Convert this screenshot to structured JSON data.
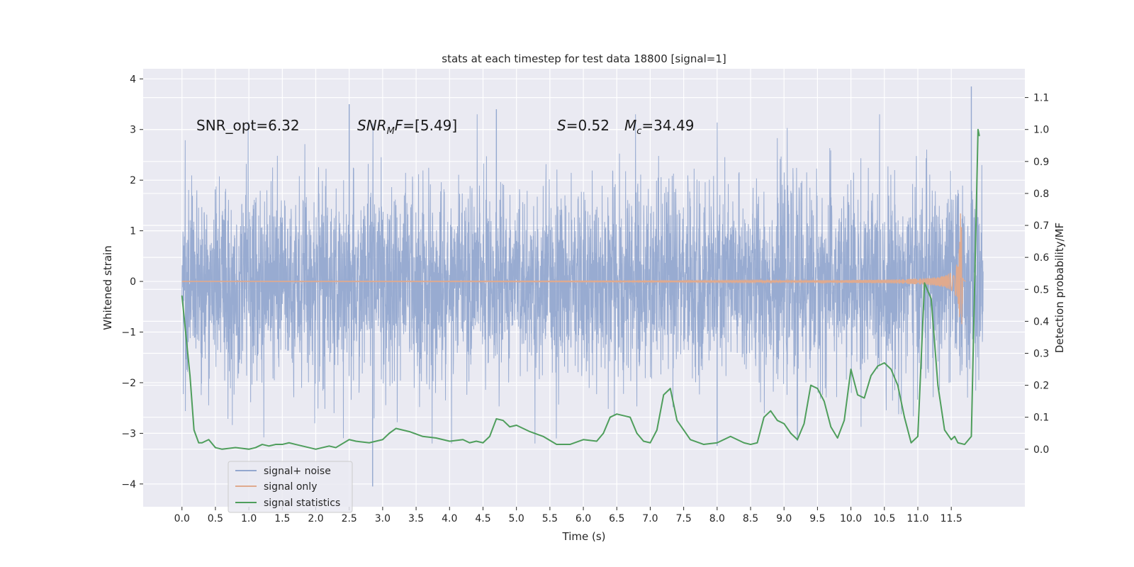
{
  "chart_data": {
    "type": "line",
    "title": "stats at each timestep for test data 18800 [signal=1]",
    "xlabel": "Time (s)",
    "ylabel": "Whitened strain",
    "y2label": "Detection probability/MF",
    "xlim": [
      -0.58,
      12.6
    ],
    "ylim": [
      -4.45,
      4.2
    ],
    "y2lim": [
      -0.18,
      1.19
    ],
    "x_ticks": [
      0.0,
      0.5,
      1.0,
      1.5,
      2.0,
      2.5,
      3.0,
      3.5,
      4.0,
      4.5,
      5.0,
      5.5,
      6.0,
      6.5,
      7.0,
      7.5,
      8.0,
      8.5,
      9.0,
      9.5,
      10.0,
      10.5,
      11.0,
      11.5
    ],
    "x_tick_labels": [
      "0.0",
      "0.5",
      "1.0",
      "1.5",
      "2.0",
      "2.5",
      "3.0",
      "3.5",
      "4.0",
      "4.5",
      "5.0",
      "5.5",
      "6.0",
      "6.5",
      "7.0",
      "7.5",
      "8.0",
      "8.5",
      "9.0",
      "9.5",
      "10.0",
      "10.5",
      "11.0",
      "11.5"
    ],
    "y_ticks": [
      4,
      3,
      2,
      1,
      0,
      -1,
      -2,
      -3,
      -4
    ],
    "y_tick_labels": [
      "4",
      "3",
      "2",
      "1",
      "0",
      "−1",
      "−2",
      "−3",
      "−4"
    ],
    "y2_ticks": [
      1.1,
      1.0,
      0.9,
      0.8,
      0.7,
      0.6,
      0.5,
      0.4,
      0.3,
      0.2,
      0.1,
      0.0
    ],
    "y2_tick_labels": [
      "1.1",
      "1.0",
      "0.9",
      "0.8",
      "0.7",
      "0.6",
      "0.5",
      "0.4",
      "0.3",
      "0.2",
      "0.1",
      "0.0"
    ],
    "grid": true,
    "legend_position": "lower-left",
    "annotations": [
      {
        "text": "SNR_opt=6.32",
        "x": 0.2,
        "y": 3.1
      },
      {
        "text": "SNR",
        "sub": "M",
        "tail": "F=[5.49]",
        "x": 2.6,
        "y": 3.1,
        "italic": true
      },
      {
        "text": "S",
        "tail": "=0.52",
        "x": 5.6,
        "y": 3.1,
        "italic_first": true
      },
      {
        "text": "M",
        "sub": "c",
        "tail": "=34.49",
        "x": 6.6,
        "y": 3.1,
        "italic": true
      }
    ],
    "series": [
      {
        "name": "signal+ noise",
        "color": "#94a8cf",
        "kind": "noise",
        "t_start": 0.0,
        "t_end": 11.98,
        "band_typical": [
          -1.8,
          1.8
        ],
        "notable_peaks": [
          {
            "x": 11.8,
            "y": 3.85
          },
          {
            "x": 2.5,
            "y": 3.5
          },
          {
            "x": 4.7,
            "y": 3.4
          },
          {
            "x": 2.85,
            "y": -4.05
          },
          {
            "x": 8.0,
            "y": -3.25
          },
          {
            "x": 9.2,
            "y": -3.15
          }
        ]
      },
      {
        "name": "signal only",
        "color": "#e0aa8e",
        "kind": "chirp",
        "t_start": 0.0,
        "t_end": 11.72,
        "peak_time": 11.65,
        "peak_amp": 1.35
      },
      {
        "name": "signal statistics",
        "color": "#4f9e5c",
        "axis": "right",
        "x": [
          0.0,
          0.12,
          0.18,
          0.25,
          0.3,
          0.4,
          0.5,
          0.6,
          0.8,
          1.0,
          1.1,
          1.2,
          1.3,
          1.4,
          1.5,
          1.6,
          1.7,
          1.8,
          2.0,
          2.2,
          2.3,
          2.5,
          2.6,
          2.8,
          3.0,
          3.1,
          3.2,
          3.4,
          3.6,
          3.8,
          4.0,
          4.2,
          4.3,
          4.4,
          4.5,
          4.6,
          4.7,
          4.8,
          4.9,
          5.0,
          5.2,
          5.4,
          5.6,
          5.8,
          6.0,
          6.2,
          6.3,
          6.4,
          6.5,
          6.6,
          6.7,
          6.8,
          6.9,
          7.0,
          7.1,
          7.2,
          7.3,
          7.4,
          7.6,
          7.8,
          8.0,
          8.2,
          8.3,
          8.4,
          8.5,
          8.6,
          8.7,
          8.8,
          8.9,
          9.0,
          9.1,
          9.2,
          9.3,
          9.4,
          9.5,
          9.6,
          9.7,
          9.8,
          9.9,
          10.0,
          10.1,
          10.2,
          10.3,
          10.4,
          10.5,
          10.6,
          10.7,
          10.8,
          10.9,
          11.0,
          11.1,
          11.2,
          11.3,
          11.4,
          11.5,
          11.55,
          11.6,
          11.7,
          11.8,
          11.9,
          11.92
        ],
        "y": [
          0.48,
          0.23,
          0.06,
          0.02,
          0.02,
          0.03,
          0.005,
          0.0,
          0.005,
          0.0,
          0.005,
          0.015,
          0.01,
          0.015,
          0.015,
          0.02,
          0.015,
          0.01,
          0.0,
          0.01,
          0.005,
          0.03,
          0.025,
          0.02,
          0.03,
          0.05,
          0.065,
          0.055,
          0.04,
          0.035,
          0.025,
          0.03,
          0.02,
          0.025,
          0.02,
          0.04,
          0.095,
          0.09,
          0.07,
          0.075,
          0.055,
          0.04,
          0.015,
          0.015,
          0.03,
          0.025,
          0.05,
          0.1,
          0.11,
          0.105,
          0.1,
          0.05,
          0.025,
          0.02,
          0.06,
          0.17,
          0.19,
          0.09,
          0.03,
          0.015,
          0.02,
          0.04,
          0.03,
          0.02,
          0.015,
          0.02,
          0.1,
          0.12,
          0.09,
          0.08,
          0.05,
          0.03,
          0.08,
          0.2,
          0.19,
          0.15,
          0.07,
          0.035,
          0.09,
          0.25,
          0.17,
          0.16,
          0.23,
          0.26,
          0.27,
          0.25,
          0.2,
          0.1,
          0.02,
          0.04,
          0.52,
          0.47,
          0.2,
          0.06,
          0.03,
          0.04,
          0.02,
          0.015,
          0.04,
          1.0,
          0.98
        ]
      }
    ]
  },
  "legend": {
    "items": [
      {
        "label": "signal+ noise",
        "color": "#94a8cf"
      },
      {
        "label": "signal only",
        "color": "#e0aa8e"
      },
      {
        "label": "signal statistics",
        "color": "#4f9e5c"
      }
    ]
  }
}
